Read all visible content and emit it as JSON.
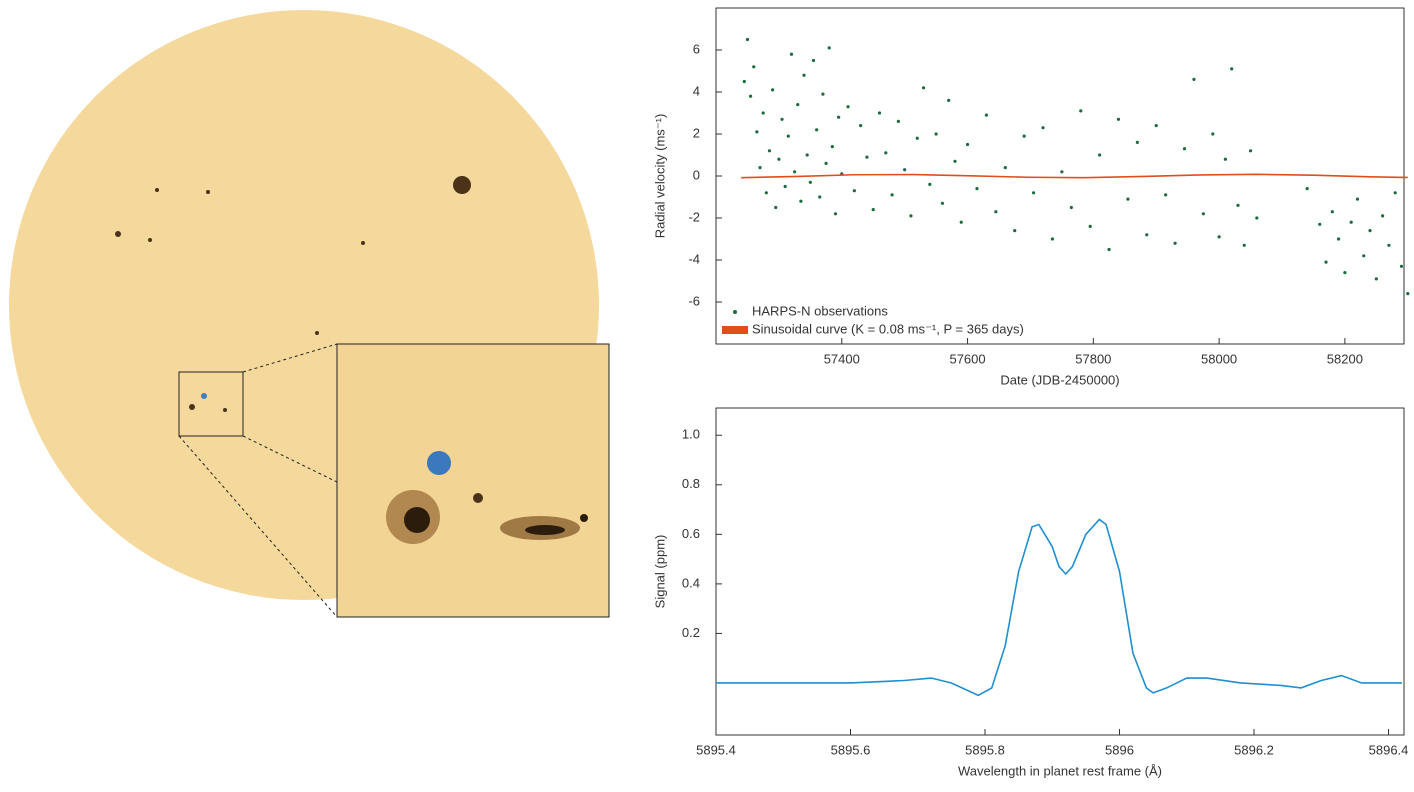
{
  "chart_data": [
    {
      "type": "scatter",
      "x_label": "Date (JDB-2450000)",
      "y_label": "Radial velocity (ms⁻¹)",
      "xlim": [
        57200,
        58294
      ],
      "ylim": [
        -8,
        8
      ],
      "xticks": [
        57400,
        57600,
        57800,
        58000,
        58200
      ],
      "yticks": [
        -6,
        -4,
        -2,
        0,
        2,
        4,
        6
      ],
      "legend": "lower left",
      "series": [
        {
          "name": "HARPS-N observations",
          "color": "#1b6b3c",
          "x": [
            57245,
            57250,
            57255,
            57260,
            57265,
            57270,
            57275,
            57280,
            57285,
            57290,
            57295,
            57300,
            57305,
            57310,
            57315,
            57320,
            57325,
            57330,
            57335,
            57340,
            57345,
            57350,
            57355,
            57360,
            57365,
            57370,
            57375,
            57380,
            57385,
            57390,
            57395,
            57400,
            57410,
            57420,
            57430,
            57440,
            57450,
            57460,
            57470,
            57480,
            57490,
            57500,
            57510,
            57520,
            57530,
            57540,
            57550,
            57560,
            57570,
            57580,
            57590,
            57600,
            57615,
            57630,
            57645,
            57660,
            57675,
            57690,
            57705,
            57720,
            57735,
            57750,
            57765,
            57780,
            57795,
            57810,
            57825,
            57840,
            57855,
            57870,
            57885,
            57900,
            57915,
            57930,
            57945,
            57960,
            57975,
            57990,
            58000,
            58010,
            58020,
            58030,
            58040,
            58050,
            58060,
            58140,
            58160,
            58170,
            58180,
            58190,
            58200,
            58210,
            58220,
            58230,
            58240,
            58250,
            58260,
            58270,
            58280,
            58290,
            58300
          ],
          "values": [
            4.5,
            6.5,
            3.8,
            5.2,
            2.1,
            0.4,
            3.0,
            -0.8,
            1.2,
            4.1,
            -1.5,
            0.8,
            2.7,
            -0.5,
            1.9,
            5.8,
            0.2,
            3.4,
            -1.2,
            4.8,
            1.0,
            -0.3,
            5.5,
            2.2,
            -1.0,
            3.9,
            0.6,
            6.1,
            1.4,
            -1.8,
            2.8,
            0.1,
            3.3,
            -0.7,
            2.4,
            0.9,
            -1.6,
            3.0,
            1.1,
            -0.9,
            2.6,
            0.3,
            -1.9,
            1.8,
            4.2,
            -0.4,
            2.0,
            -1.3,
            3.6,
            0.7,
            -2.2,
            1.5,
            -0.6,
            2.9,
            -1.7,
            0.4,
            -2.6,
            1.9,
            -0.8,
            2.3,
            -3.0,
            0.2,
            -1.5,
            3.1,
            -2.4,
            1.0,
            -3.5,
            2.7,
            -1.1,
            1.6,
            -2.8,
            2.4,
            -0.9,
            -3.2,
            1.3,
            4.6,
            -1.8,
            2.0,
            -2.9,
            0.8,
            5.1,
            -1.4,
            -3.3,
            1.2,
            -2.0,
            -0.6,
            -2.3,
            -4.1,
            -1.7,
            -3.0,
            -4.6,
            -2.2,
            -1.1,
            -3.8,
            -2.6,
            -4.9,
            -1.9,
            -3.3,
            -0.8,
            -4.3,
            -5.6
          ]
        },
        {
          "name": "Sinusoidal curve (K = 0.08 ms⁻¹, P = 365 days)",
          "color": "#e04e1b",
          "type": "line",
          "x": [
            57240,
            57330,
            57420,
            57515,
            57605,
            57695,
            57785,
            57880,
            57970,
            58060,
            58150,
            58240,
            58300
          ],
          "values": [
            -0.08,
            -0.02,
            0.06,
            0.07,
            0.01,
            -0.06,
            -0.08,
            -0.02,
            0.05,
            0.08,
            0.04,
            -0.04,
            -0.07
          ]
        }
      ]
    },
    {
      "type": "line",
      "x_label": "Wavelength in planet rest frame (Å)",
      "y_label": "Signal (ppm)",
      "xlim": [
        5895.4,
        5896.423
      ],
      "ylim": [
        -0.21,
        1.11
      ],
      "xticks": [
        5895.4,
        5895.6,
        5895.8,
        5896.0,
        5896.2,
        5896.4
      ],
      "yticks": [
        0.2,
        0.4,
        0.6,
        0.8,
        {
          "value": 1,
          "label": "1.0"
        }
      ],
      "series": [
        {
          "color": "#1f8fd0",
          "x": [
            5895.4,
            5895.5,
            5895.6,
            5895.68,
            5895.72,
            5895.75,
            5895.79,
            5895.81,
            5895.83,
            5895.85,
            5895.87,
            5895.88,
            5895.9,
            5895.91,
            5895.92,
            5895.93,
            5895.95,
            5895.97,
            5895.98,
            5896.0,
            5896.02,
            5896.04,
            5896.05,
            5896.07,
            5896.1,
            5896.13,
            5896.18,
            5896.24,
            5896.27,
            5896.3,
            5896.33,
            5896.36,
            5896.4,
            5896.42
          ],
          "values": [
            0,
            0,
            0,
            0.01,
            0.02,
            0,
            -0.05,
            -0.02,
            0.15,
            0.45,
            0.63,
            0.64,
            0.55,
            0.47,
            0.44,
            0.47,
            0.6,
            0.66,
            0.64,
            0.45,
            0.12,
            -0.02,
            -0.04,
            -0.02,
            0.02,
            0.02,
            0,
            -0.01,
            -0.02,
            0.01,
            0.03,
            0,
            0,
            0
          ]
        }
      ]
    }
  ]
}
